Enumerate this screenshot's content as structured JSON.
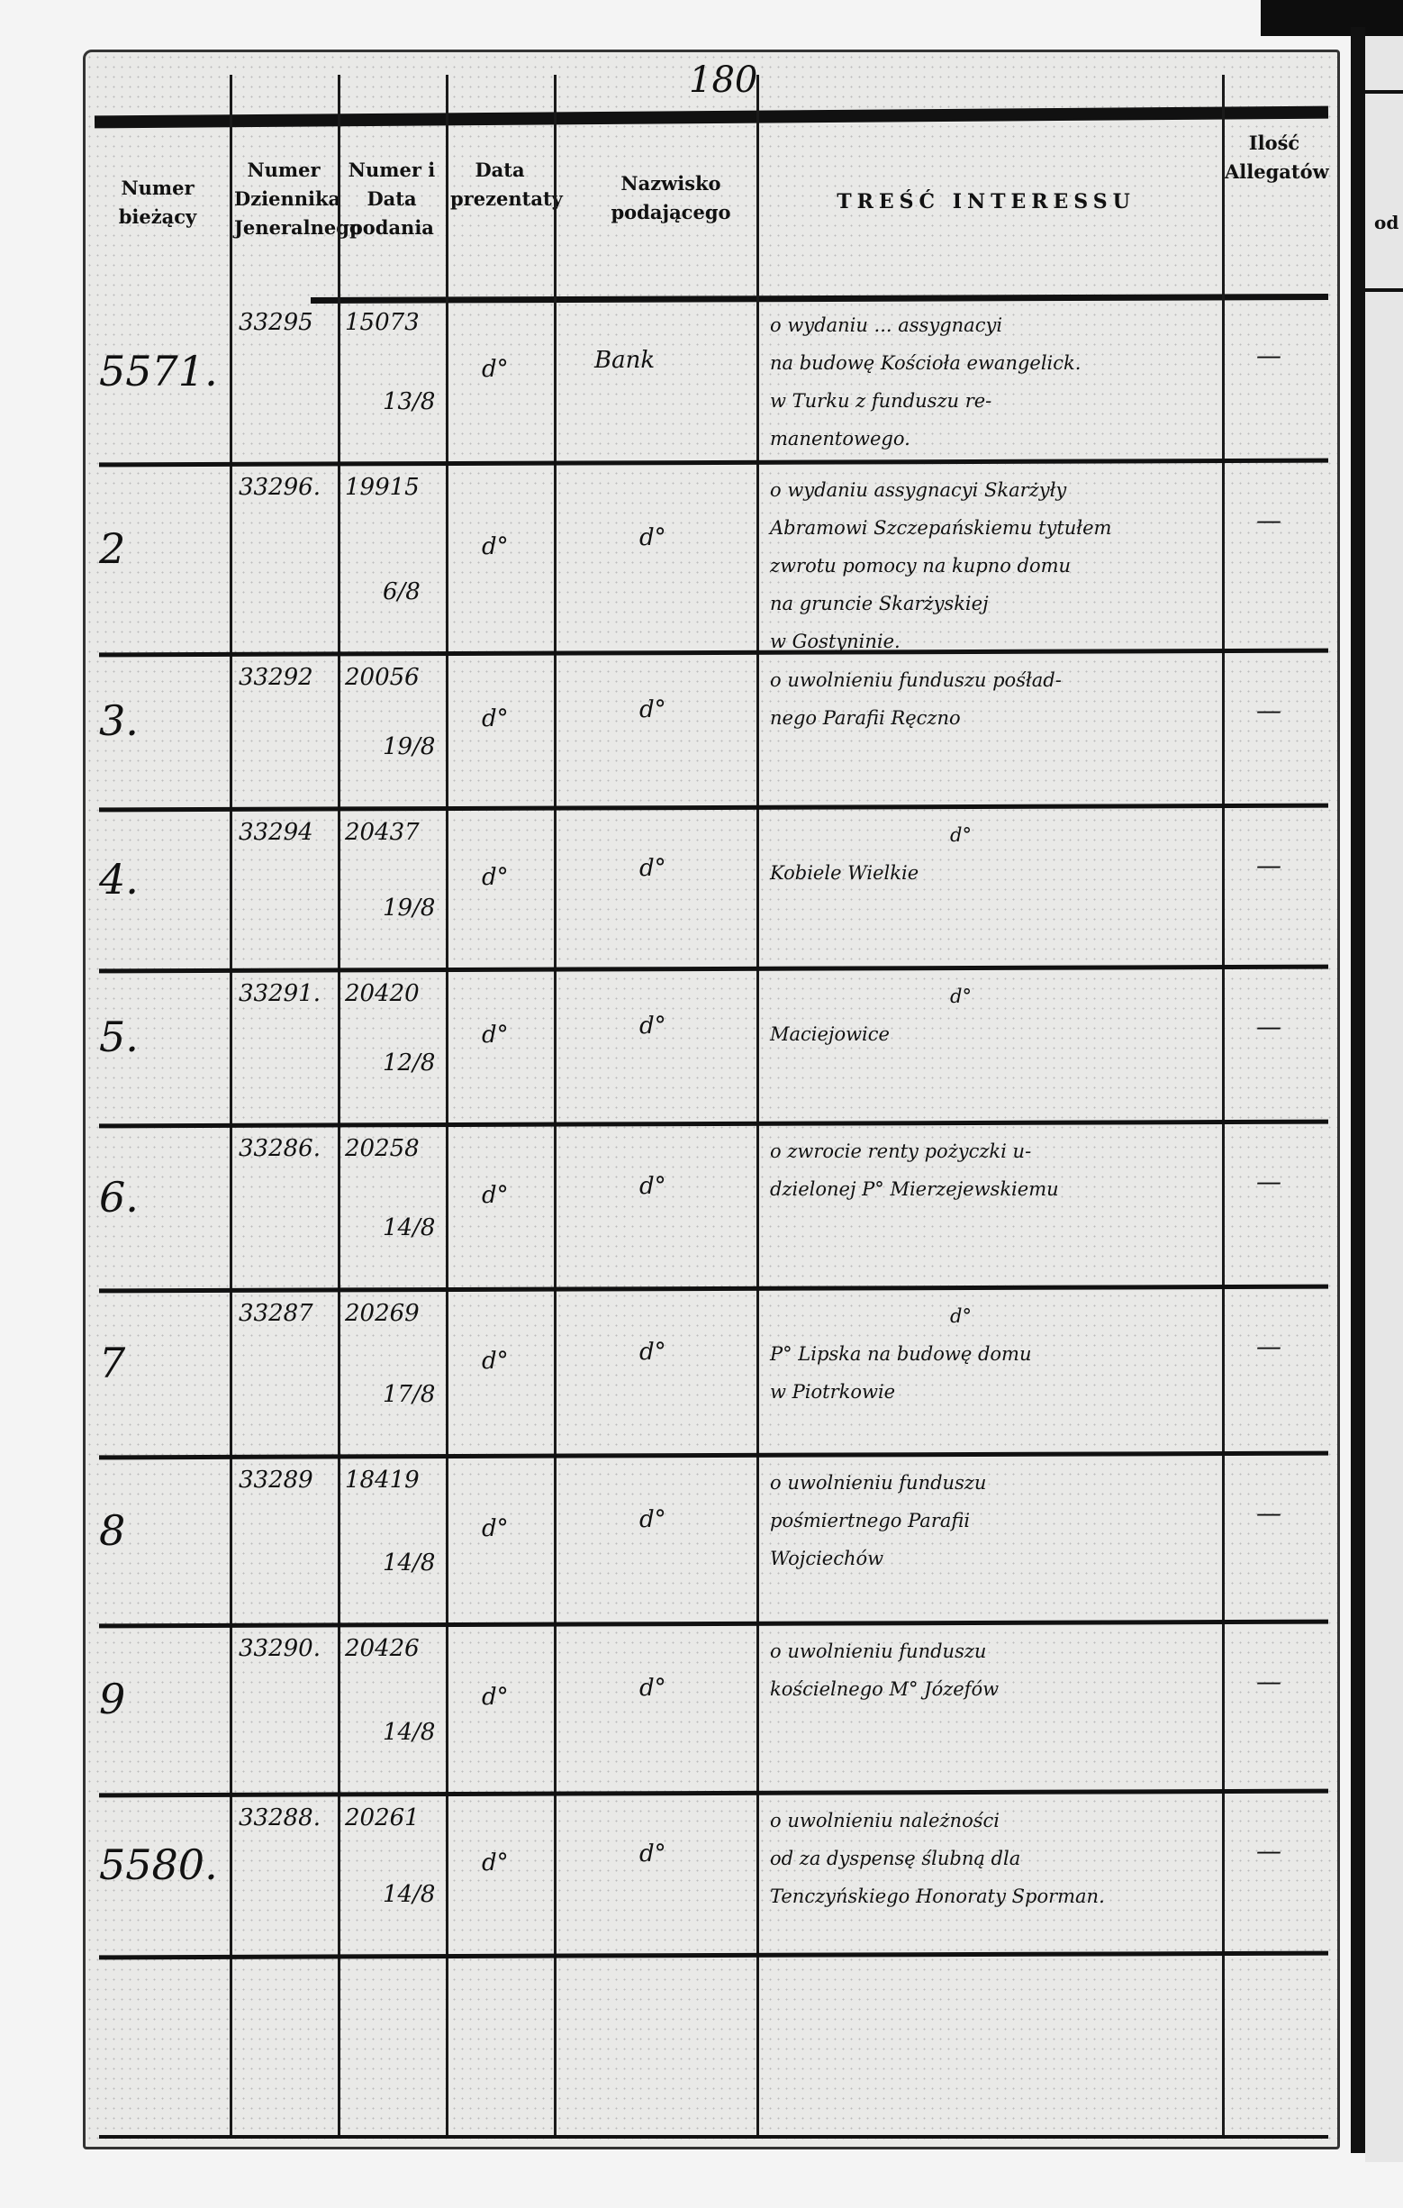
{
  "page_number": "180",
  "next_page_fragment": "od",
  "headers": {
    "current_number": "Numer bieżący",
    "journal_number": "Numer Dziennika Jeneralnego",
    "submission": "Numer i Data podania",
    "presentation_date": "Data prezentaty",
    "submitter_name": "Nazwisko podającego",
    "content": "TREŚĆ INTERESSU",
    "attachments": "Ilość Allegatów"
  },
  "rows": [
    {
      "no": "5571.",
      "journal": "33295",
      "sub_no": "15073",
      "sub_date": "13/8",
      "presented": "d°",
      "name": "Bank",
      "content": [
        "o wydaniu ... assygnacyi",
        "na budowę Kościoła ewangelick.",
        "w Turku z funduszu re-",
        "manentowego."
      ],
      "attachments": "—"
    },
    {
      "no": "2",
      "journal": "33296.",
      "sub_no": "19915",
      "sub_date": "6/8",
      "presented": "d°",
      "name": "d°",
      "content": [
        "o wydaniu assygnacyi Skarżyły",
        "Abramowi Szczepańskiemu tytułem",
        "zwrotu pomocy na kupno domu",
        "na gruncie Skarżyskiej",
        "w Gostyninie."
      ],
      "attachments": "—"
    },
    {
      "no": "3.",
      "journal": "33292",
      "sub_no": "20056",
      "sub_date": "19/8",
      "presented": "d°",
      "name": "d°",
      "content": [
        "o uwolnieniu funduszu pośład-",
        "nego Parafii Ręczno"
      ],
      "attachments": "—"
    },
    {
      "no": "4.",
      "journal": "33294",
      "sub_no": "20437",
      "sub_date": "19/8",
      "presented": "d°",
      "name": "d°",
      "content": [
        "d°",
        "Kobiele Wielkie"
      ],
      "attachments": "—"
    },
    {
      "no": "5.",
      "journal": "33291.",
      "sub_no": "20420",
      "sub_date": "12/8",
      "presented": "d°",
      "name": "d°",
      "content": [
        "d°",
        "Maciejowice"
      ],
      "attachments": "—"
    },
    {
      "no": "6.",
      "journal": "33286.",
      "sub_no": "20258",
      "sub_date": "14/8",
      "presented": "d°",
      "name": "d°",
      "content": [
        "o zwrocie renty pożyczki u-",
        "dzielonej P° Mierzejewskiemu"
      ],
      "attachments": "—"
    },
    {
      "no": "7",
      "journal": "33287",
      "sub_no": "20269",
      "sub_date": "17/8",
      "presented": "d°",
      "name": "d°",
      "content": [
        "d°",
        "P° Lipska na budowę domu",
        "w Piotrkowie"
      ],
      "attachments": "—"
    },
    {
      "no": "8",
      "journal": "33289",
      "sub_no": "18419",
      "sub_date": "14/8",
      "presented": "d°",
      "name": "d°",
      "content": [
        "o uwolnieniu funduszu",
        "pośmiertnego Parafii",
        "Wojciechów"
      ],
      "attachments": "—"
    },
    {
      "no": "9",
      "journal": "33290.",
      "sub_no": "20426",
      "sub_date": "14/8",
      "presented": "d°",
      "name": "d°",
      "content": [
        "o uwolnieniu funduszu",
        "kościelnego M° Józefów"
      ],
      "attachments": "—"
    },
    {
      "no": "5580.",
      "journal": "33288.",
      "sub_no": "20261",
      "sub_date": "14/8",
      "presented": "d°",
      "name": "d°",
      "content": [
        "o uwolnieniu należności",
        "od za dyspensę ślubną dla",
        "Tenczyńskiego Honoraty Sporman."
      ],
      "attachments": "—"
    }
  ]
}
